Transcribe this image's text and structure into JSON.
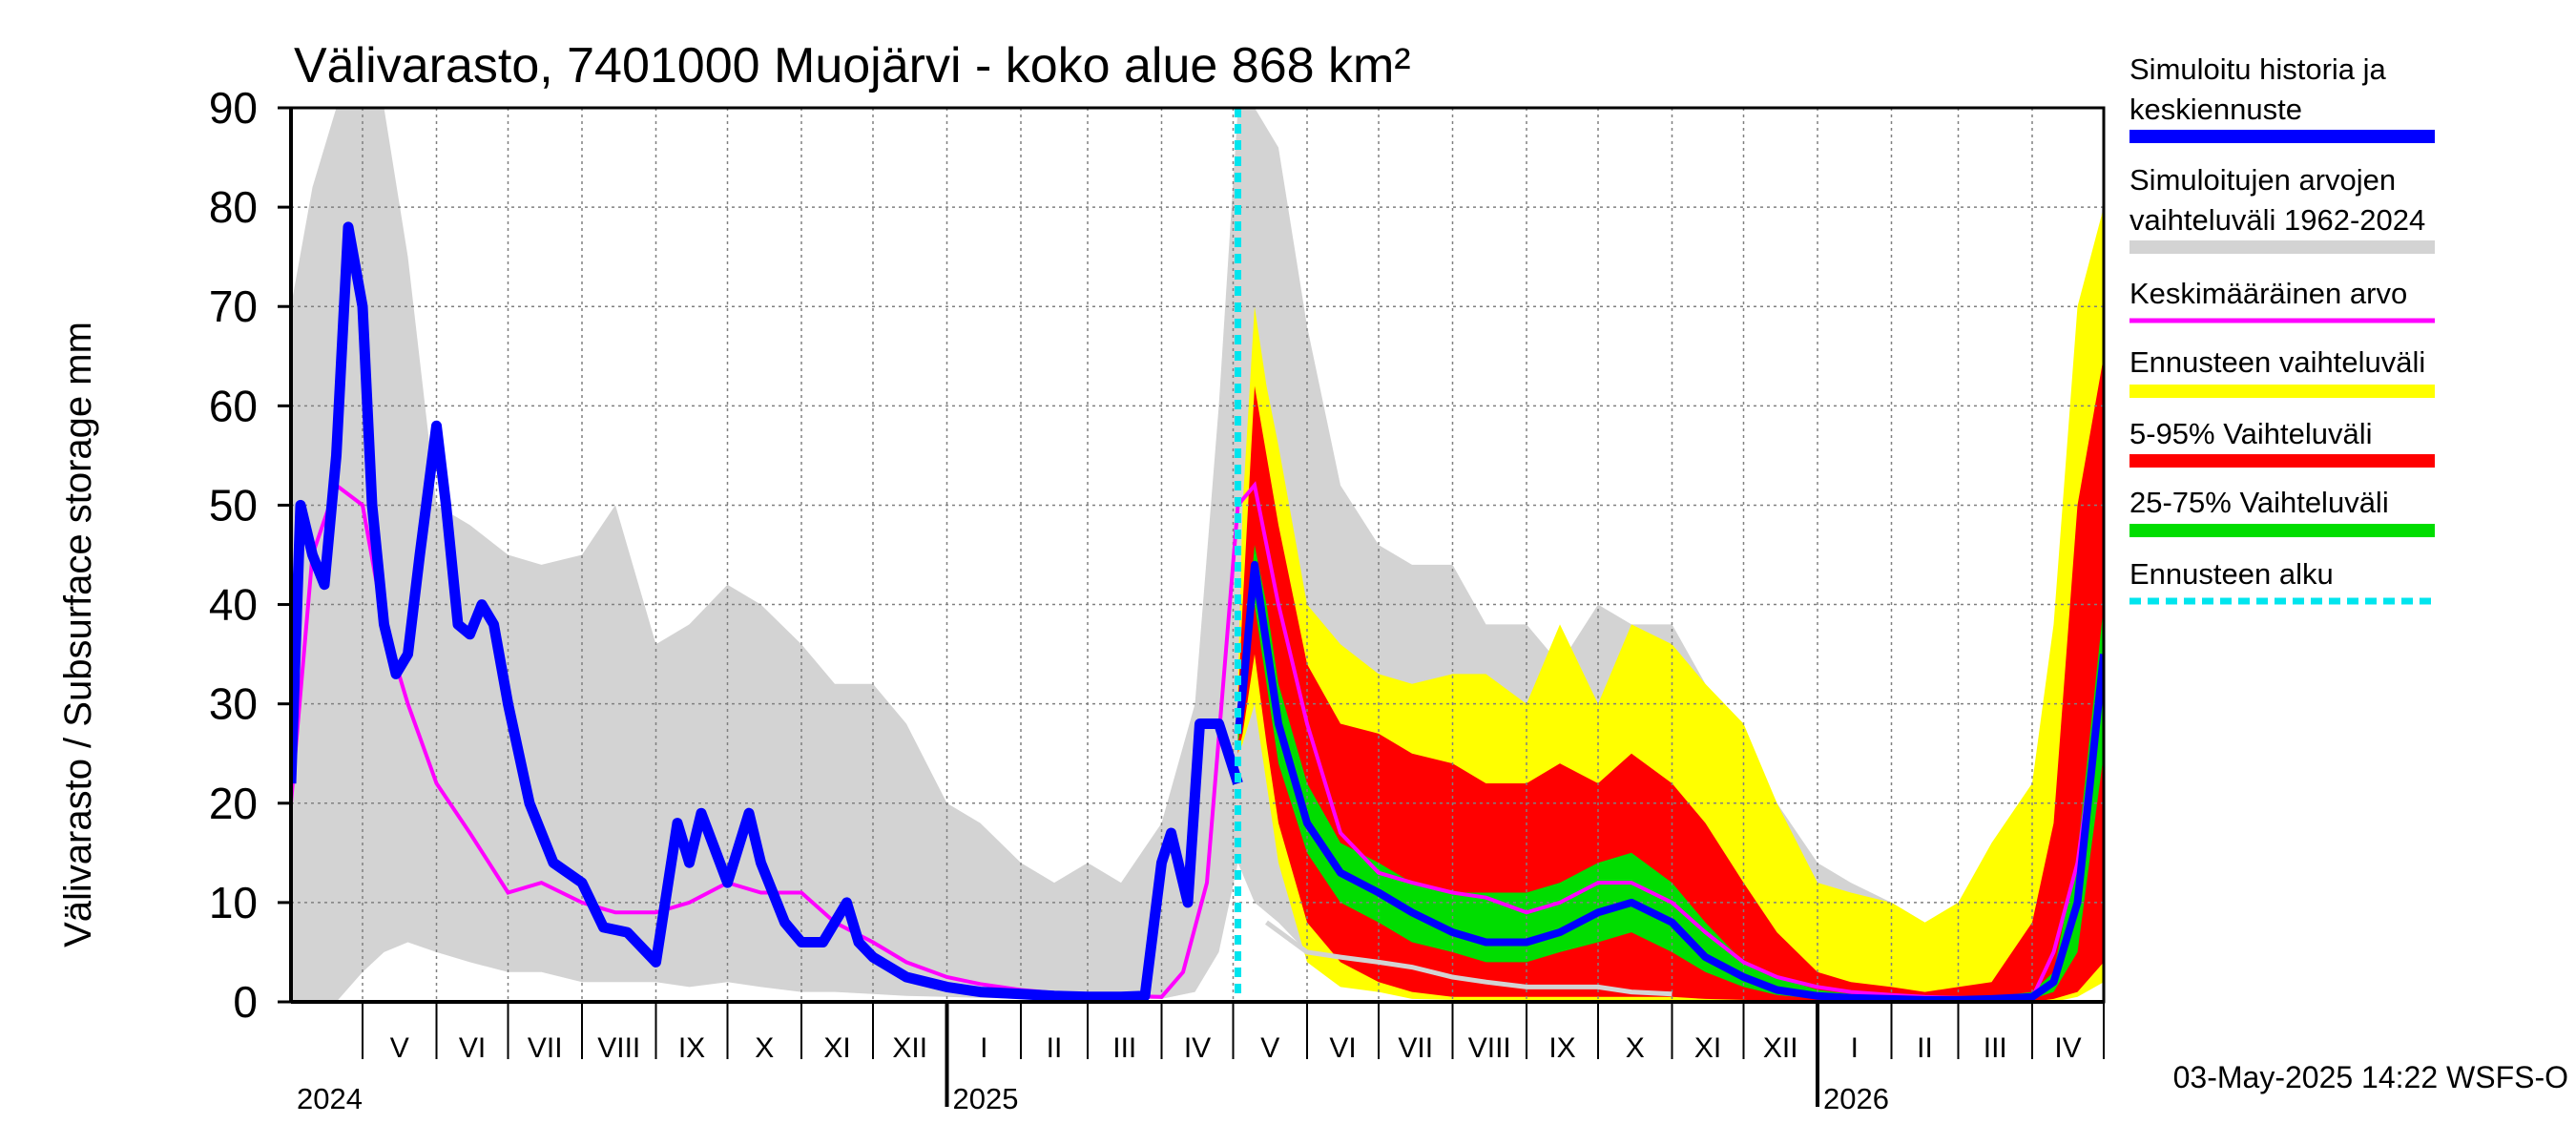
{
  "chart_data": {
    "type": "area",
    "title": "Välivarasto, 7401000 Muojärvi - koko alue 868 km²",
    "ylabel": "Välivarasto / Subsurface storage  mm",
    "ylim": [
      0,
      90
    ],
    "yticks": [
      "0",
      "10",
      "20",
      "30",
      "40",
      "50",
      "60",
      "70",
      "80",
      "90"
    ],
    "xlim": [
      "2024-04-01",
      "2026-05-01"
    ],
    "forecast_start": "2025-05-03",
    "months": [
      "V",
      "VI",
      "VII",
      "VIII",
      "IX",
      "X",
      "XI",
      "XII",
      "I",
      "II",
      "III",
      "IV",
      "V",
      "VI",
      "VII",
      "VIII",
      "IX",
      "X",
      "XI",
      "XII",
      "I",
      "II",
      "III",
      "IV"
    ],
    "years": [
      "2024",
      "2025",
      "2026"
    ],
    "footer": "03-May-2025 14:22 WSFS-O",
    "legend": [
      {
        "label": "Simuloitu historia ja keskiennuste",
        "color": "#0000ff",
        "style": "thick"
      },
      {
        "label": "Simuloitujen arvojen vaihteluväli 1962-2024",
        "color": "#d3d3d3",
        "style": "thick"
      },
      {
        "label": "Keskimääräinen arvo",
        "color": "#ff00ff",
        "style": "thin"
      },
      {
        "label": "Ennusteen vaihteluväli",
        "color": "#ffff00",
        "style": "thick"
      },
      {
        "label": "5-95% Vaihteluväli",
        "color": "#ff0000",
        "style": "thick"
      },
      {
        "label": "25-75% Vaihteluväli",
        "color": "#00dd00",
        "style": "thick"
      },
      {
        "label": "Ennusteen alku",
        "color": "#00e5ee",
        "style": "dashed"
      }
    ],
    "colors": {
      "history": "#0000ff",
      "range": "#d3d3d3",
      "mean": "#ff00ff",
      "forecast_range": "#ffff00",
      "band_5_95": "#ff0000",
      "band_25_75": "#00dd00",
      "forecast_start": "#00e5ee",
      "grid": "#808080",
      "lower_extreme": "#d3d3d3"
    },
    "series": {
      "range": {
        "x": [
          "2024-04-01",
          "2024-04-10",
          "2024-04-20",
          "2024-05-01",
          "2024-05-10",
          "2024-05-20",
          "2024-06-01",
          "2024-06-15",
          "2024-07-01",
          "2024-07-15",
          "2024-08-01",
          "2024-08-15",
          "2024-09-01",
          "2024-09-15",
          "2024-10-01",
          "2024-10-15",
          "2024-11-01",
          "2024-11-15",
          "2024-12-01",
          "2024-12-15",
          "2025-01-01",
          "2025-01-15",
          "2025-02-01",
          "2025-02-15",
          "2025-03-01",
          "2025-03-15",
          "2025-04-01",
          "2025-04-15",
          "2025-04-25",
          "2025-05-03",
          "2025-05-10",
          "2025-05-20",
          "2025-06-01",
          "2025-06-15",
          "2025-07-01",
          "2025-07-15",
          "2025-08-01",
          "2025-08-15",
          "2025-09-01",
          "2025-09-15",
          "2025-10-01",
          "2025-10-15",
          "2025-11-01",
          "2025-11-15",
          "2025-12-01",
          "2025-12-15",
          "2026-01-01",
          "2026-01-15",
          "2026-02-01",
          "2026-02-15",
          "2026-03-01",
          "2026-03-15",
          "2026-04-01",
          "2026-04-10",
          "2026-04-20",
          "2026-05-01"
        ],
        "upper": [
          70,
          82,
          90,
          90,
          90,
          75,
          50,
          48,
          45,
          44,
          45,
          50,
          36,
          38,
          42,
          40,
          36,
          32,
          32,
          28,
          20,
          18,
          14,
          12,
          14,
          12,
          18,
          30,
          60,
          90,
          90,
          86,
          68,
          52,
          46,
          44,
          44,
          38,
          38,
          34,
          40,
          38,
          38,
          32,
          22,
          20,
          14,
          12,
          10,
          8,
          8,
          7,
          10,
          25,
          50,
          82
        ],
        "lower": [
          0,
          0,
          0,
          3,
          5,
          6,
          5,
          4,
          3,
          3,
          2,
          2,
          2,
          1.5,
          2,
          1.5,
          1,
          1,
          0.8,
          0.6,
          0.5,
          0.4,
          0.3,
          0.3,
          0.3,
          0.3,
          0.3,
          1,
          5,
          14,
          10,
          8,
          5,
          3,
          2,
          2,
          1.5,
          1.5,
          1,
          1,
          1,
          0.8,
          0.6,
          0.5,
          0.4,
          0.3,
          0.3,
          0.3,
          0.3,
          0.3,
          0.3,
          0.3,
          0.3,
          1,
          3,
          6
        ]
      },
      "history": {
        "x": [
          "2024-04-01",
          "2024-04-05",
          "2024-04-10",
          "2024-04-15",
          "2024-04-20",
          "2024-04-25",
          "2024-05-01",
          "2024-05-05",
          "2024-05-10",
          "2024-05-15",
          "2024-05-20",
          "2024-05-25",
          "2024-06-01",
          "2024-06-05",
          "2024-06-10",
          "2024-06-15",
          "2024-06-20",
          "2024-06-25",
          "2024-07-01",
          "2024-07-10",
          "2024-07-20",
          "2024-08-01",
          "2024-08-10",
          "2024-08-20",
          "2024-09-01",
          "2024-09-10",
          "2024-09-15",
          "2024-09-20",
          "2024-10-01",
          "2024-10-10",
          "2024-10-15",
          "2024-10-25",
          "2024-11-01",
          "2024-11-10",
          "2024-11-20",
          "2024-11-25",
          "2024-12-01",
          "2024-12-15",
          "2025-01-01",
          "2025-01-15",
          "2025-02-01",
          "2025-02-15",
          "2025-03-01",
          "2025-03-15",
          "2025-03-25",
          "2025-04-01",
          "2025-04-05",
          "2025-04-12",
          "2025-04-17",
          "2025-04-25",
          "2025-05-03"
        ],
        "values": [
          22,
          50,
          45,
          42,
          55,
          78,
          70,
          50,
          38,
          33,
          35,
          45,
          58,
          50,
          38,
          37,
          40,
          38,
          30,
          20,
          14,
          12,
          7.5,
          7,
          4,
          18,
          14,
          19,
          12,
          19,
          14,
          8,
          6,
          6,
          10,
          6,
          4.5,
          2.5,
          1.5,
          1,
          0.8,
          0.6,
          0.5,
          0.5,
          0.6,
          14,
          17,
          10,
          28,
          28,
          22
        ]
      },
      "mean": {
        "x": [
          "2024-04-01",
          "2024-04-10",
          "2024-04-20",
          "2024-05-01",
          "2024-05-10",
          "2024-05-20",
          "2024-06-01",
          "2024-06-15",
          "2024-07-01",
          "2024-07-15",
          "2024-08-01",
          "2024-08-15",
          "2024-09-01",
          "2024-09-15",
          "2024-10-01",
          "2024-10-15",
          "2024-11-01",
          "2024-11-15",
          "2024-12-01",
          "2024-12-15",
          "2025-01-01",
          "2025-01-15",
          "2025-02-01",
          "2025-02-15",
          "2025-03-01",
          "2025-03-15",
          "2025-04-01",
          "2025-04-10",
          "2025-04-20",
          "2025-05-03",
          "2025-05-10",
          "2025-05-20",
          "2025-06-01",
          "2025-06-15",
          "2025-07-01",
          "2025-07-15",
          "2025-08-01",
          "2025-08-15",
          "2025-09-01",
          "2025-09-15",
          "2025-10-01",
          "2025-10-15",
          "2025-11-01",
          "2025-11-15",
          "2025-12-01",
          "2025-12-15",
          "2026-01-01",
          "2026-01-15",
          "2026-02-01",
          "2026-02-15",
          "2026-03-01",
          "2026-03-15",
          "2026-04-01",
          "2026-04-10",
          "2026-04-20",
          "2026-05-01"
        ],
        "values": [
          20,
          45,
          52,
          50,
          38,
          30,
          22,
          17,
          11,
          12,
          10,
          9,
          9,
          10,
          12,
          11,
          11,
          8,
          6,
          4,
          2.5,
          1.8,
          1.2,
          0.9,
          0.7,
          0.6,
          0.5,
          3,
          12,
          50,
          52,
          40,
          28,
          17,
          13,
          12,
          11,
          10.5,
          9,
          10,
          12,
          12,
          10,
          7,
          4,
          2.5,
          1.5,
          1,
          0.7,
          0.5,
          0.4,
          0.4,
          0.4,
          5,
          14,
          33
        ]
      },
      "forecast": {
        "x": [
          "2025-05-03",
          "2025-05-05",
          "2025-05-10",
          "2025-05-15",
          "2025-05-20",
          "2025-06-01",
          "2025-06-15",
          "2025-07-01",
          "2025-07-15",
          "2025-08-01",
          "2025-08-15",
          "2025-09-01",
          "2025-09-15",
          "2025-10-01",
          "2025-10-15",
          "2025-11-01",
          "2025-11-15",
          "2025-12-01",
          "2025-12-15",
          "2026-01-01",
          "2026-01-15",
          "2026-02-01",
          "2026-02-15",
          "2026-03-01",
          "2026-03-15",
          "2026-04-01",
          "2026-04-10",
          "2026-04-20",
          "2026-05-01"
        ],
        "max": [
          32,
          50,
          70,
          62,
          56,
          40,
          36,
          33,
          32,
          33,
          33,
          30,
          38,
          30,
          38,
          36,
          32,
          28,
          20,
          12,
          11,
          10,
          8,
          10,
          16,
          22,
          38,
          70,
          80
        ],
        "p95": [
          30,
          40,
          62,
          55,
          48,
          34,
          28,
          27,
          25,
          24,
          22,
          22,
          24,
          22,
          25,
          22,
          18,
          12,
          7,
          3,
          2,
          1.5,
          1,
          1.5,
          2,
          8,
          18,
          50,
          65
        ],
        "p75": [
          28,
          33,
          46,
          40,
          32,
          22,
          16,
          14,
          12,
          11,
          11,
          11,
          12,
          14,
          15,
          12,
          8,
          4,
          2.5,
          1.2,
          0.8,
          0.5,
          0.3,
          0.3,
          0.5,
          1,
          3,
          15,
          40
        ],
        "median": [
          27,
          31,
          44,
          36,
          28,
          18,
          13,
          11,
          9,
          7,
          6,
          6,
          7,
          9,
          10,
          8,
          4.5,
          2.5,
          1.2,
          0.6,
          0.4,
          0.3,
          0.2,
          0.2,
          0.3,
          0.5,
          2,
          10,
          35
        ],
        "p25": [
          26,
          29,
          40,
          32,
          24,
          15,
          10,
          8,
          6,
          5,
          4,
          4,
          5,
          6,
          7,
          5,
          3,
          1.5,
          0.7,
          0.3,
          0.2,
          0.1,
          0.1,
          0.1,
          0.2,
          0.3,
          1,
          5,
          25
        ],
        "p5": [
          25,
          27,
          35,
          26,
          18,
          8,
          4,
          2,
          1,
          0.5,
          0.5,
          0.5,
          0.5,
          0.5,
          0.5,
          0.5,
          0.3,
          0.2,
          0.1,
          0,
          0,
          0,
          0,
          0,
          0,
          0,
          0.3,
          1,
          4
        ],
        "min": [
          25,
          26,
          30,
          22,
          14,
          4,
          1.5,
          1,
          0.3,
          0.2,
          0,
          0,
          0,
          0,
          0,
          0,
          0,
          0,
          0,
          0,
          0,
          0,
          0,
          0,
          0,
          0,
          0,
          0.5,
          2
        ]
      },
      "lower_extreme": {
        "x": [
          "2025-05-15",
          "2025-06-01",
          "2025-06-15",
          "2025-07-01",
          "2025-07-15",
          "2025-08-01",
          "2025-08-15",
          "2025-09-01",
          "2025-09-15",
          "2025-10-01",
          "2025-10-15",
          "2025-11-01"
        ],
        "values": [
          8,
          5,
          4.5,
          4,
          3.5,
          2.5,
          2,
          1.5,
          1.5,
          1.5,
          1,
          0.8
        ]
      }
    }
  }
}
